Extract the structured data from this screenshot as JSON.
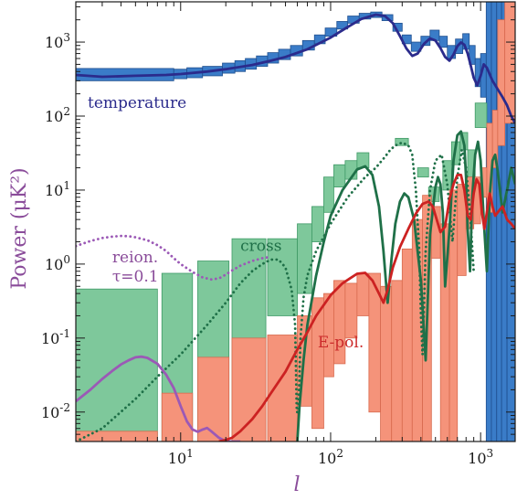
{
  "chart_data": {
    "type": "line",
    "xlabel": "l",
    "ylabel": "Power (μK²)",
    "xscale": "log",
    "yscale": "log",
    "xlim": [
      2,
      1700
    ],
    "ylim": [
      0.004,
      3500
    ],
    "x_ticks": [
      {
        "value": 10,
        "base": "10",
        "exp": "1"
      },
      {
        "value": 100,
        "base": "10",
        "exp": "2"
      },
      {
        "value": 1000,
        "base": "10",
        "exp": "3"
      }
    ],
    "y_ticks": [
      {
        "value": 0.01,
        "base": "10",
        "exp": "-2"
      },
      {
        "value": 0.1,
        "base": "10",
        "exp": "-1"
      },
      {
        "value": 1,
        "base": "10",
        "exp": "0"
      },
      {
        "value": 10,
        "base": "10",
        "exp": "1"
      },
      {
        "value": 100,
        "base": "10",
        "exp": "2"
      },
      {
        "value": 1000,
        "base": "10",
        "exp": "3"
      }
    ],
    "annotations": [
      {
        "text": "temperature",
        "color": "#2b2b8c",
        "x": 2.4,
        "y": 130
      },
      {
        "text": "cross",
        "color": "#1f7048",
        "x": 25,
        "y": 1.5
      },
      {
        "text": "reion.",
        "color": "#8a4c9a",
        "x": 3.5,
        "y": 1.05
      },
      {
        "text": "τ=0.1",
        "color": "#8a4c9a",
        "x": 3.5,
        "y": 0.58
      },
      {
        "text": "E-pol.",
        "color": "#cc2b2b",
        "x": 82,
        "y": 0.075
      }
    ],
    "band_series": [
      {
        "name": "temperature",
        "color": "#3a7cc8",
        "edge": "#1f4f8f",
        "bands": [
          [
            2,
            9,
            300,
            440
          ],
          [
            9,
            11,
            320,
            430
          ],
          [
            11,
            14,
            330,
            450
          ],
          [
            14,
            19,
            350,
            470
          ],
          [
            19,
            23,
            380,
            520
          ],
          [
            23,
            27,
            400,
            560
          ],
          [
            27,
            32,
            430,
            600
          ],
          [
            32,
            38,
            470,
            650
          ],
          [
            38,
            45,
            520,
            720
          ],
          [
            45,
            54,
            580,
            800
          ],
          [
            54,
            65,
            650,
            900
          ],
          [
            65,
            78,
            780,
            1050
          ],
          [
            78,
            92,
            950,
            1250
          ],
          [
            92,
            110,
            1200,
            1550
          ],
          [
            110,
            130,
            1500,
            1900
          ],
          [
            130,
            155,
            1800,
            2250
          ],
          [
            155,
            185,
            2050,
            2450
          ],
          [
            185,
            220,
            2150,
            2550
          ],
          [
            220,
            260,
            1950,
            2350
          ],
          [
            260,
            300,
            1400,
            1800
          ],
          [
            300,
            345,
            950,
            1250
          ],
          [
            345,
            400,
            750,
            1000
          ],
          [
            400,
            460,
            900,
            1200
          ],
          [
            460,
            530,
            1050,
            1450
          ],
          [
            530,
            600,
            850,
            1200
          ],
          [
            600,
            680,
            600,
            900
          ],
          [
            680,
            760,
            700,
            1100
          ],
          [
            760,
            840,
            800,
            1300
          ],
          [
            840,
            920,
            500,
            900
          ],
          [
            920,
            1000,
            250,
            600
          ],
          [
            1000,
            1090,
            180,
            700
          ],
          [
            1090,
            1180,
            0.004,
            3500
          ],
          [
            1180,
            1280,
            0.004,
            3500
          ],
          [
            1280,
            1380,
            0.004,
            3500
          ],
          [
            1380,
            1500,
            0.004,
            3500
          ],
          [
            1500,
            1700,
            0.004,
            3500
          ]
        ]
      },
      {
        "name": "cross",
        "color": "#7ec89b",
        "edge": "#3f9a66",
        "bands": [
          [
            2,
            7,
            0.0045,
            0.46
          ],
          [
            7.5,
            12,
            0.004,
            0.75
          ],
          [
            13,
            21,
            0.004,
            1.1
          ],
          [
            22,
            37,
            0.004,
            2.2
          ],
          [
            38,
            60,
            0.2,
            2.2
          ],
          [
            60,
            75,
            0.4,
            3.5
          ],
          [
            75,
            90,
            2.0,
            6.0
          ],
          [
            90,
            105,
            5.0,
            15
          ],
          [
            105,
            125,
            11,
            22
          ],
          [
            125,
            150,
            14,
            25
          ],
          [
            150,
            180,
            20,
            32
          ],
          [
            270,
            330,
            40,
            50
          ],
          [
            380,
            450,
            15,
            20
          ],
          [
            450,
            530,
            7,
            11
          ],
          [
            560,
            640,
            10,
            25
          ],
          [
            640,
            730,
            22,
            45
          ],
          [
            730,
            820,
            35,
            60
          ],
          [
            820,
            920,
            15,
            35
          ],
          [
            920,
            1100,
            70,
            150
          ]
        ]
      },
      {
        "name": "E-pol.",
        "color": "#f5937a",
        "edge": "#d86a4e",
        "bands": [
          [
            2,
            7,
            0.004,
            0.0055
          ],
          [
            7.5,
            12,
            0.004,
            0.018
          ],
          [
            13,
            21,
            0.004,
            0.055
          ],
          [
            22,
            37,
            0.004,
            0.1
          ],
          [
            38,
            60,
            0.004,
            0.11
          ],
          [
            60,
            75,
            0.012,
            0.2
          ],
          [
            75,
            90,
            0.006,
            0.35
          ],
          [
            90,
            105,
            0.03,
            0.4
          ],
          [
            105,
            125,
            0.045,
            0.6
          ],
          [
            125,
            150,
            0.1,
            0.55
          ],
          [
            150,
            180,
            0.2,
            0.75
          ],
          [
            180,
            215,
            0.01,
            0.75
          ],
          [
            215,
            255,
            0.004,
            0.5
          ],
          [
            255,
            300,
            0.004,
            0.6
          ],
          [
            300,
            350,
            0.004,
            1.6
          ],
          [
            350,
            410,
            0.004,
            4.0
          ],
          [
            410,
            470,
            0.004,
            8.5
          ],
          [
            470,
            540,
            1.2,
            6.0
          ],
          [
            540,
            620,
            0.004,
            3.5
          ],
          [
            620,
            700,
            0.004,
            10
          ],
          [
            700,
            800,
            0.7,
            12
          ],
          [
            800,
            900,
            3.0,
            15
          ],
          [
            900,
            1000,
            3.5,
            15
          ],
          [
            1000,
            1100,
            8,
            20
          ],
          [
            1100,
            1200,
            5,
            80
          ],
          [
            1200,
            1300,
            20,
            120
          ],
          [
            1300,
            1450,
            40,
            2000
          ],
          [
            1450,
            1700,
            80,
            3500
          ]
        ]
      }
    ],
    "line_series": [
      {
        "name": "temperature",
        "color": "#2b2b8c",
        "dash": false,
        "x": [
          2,
          3,
          5,
          8,
          10,
          15,
          20,
          30,
          40,
          50,
          70,
          100,
          130,
          160,
          200,
          230,
          260,
          290,
          320,
          350,
          380,
          420,
          460,
          500,
          540,
          580,
          620,
          660,
          700,
          740,
          780,
          820,
          860,
          900,
          950,
          1000,
          1050,
          1100,
          1200,
          1300,
          1400,
          1500,
          1600,
          1700
        ],
        "y": [
          360,
          340,
          350,
          360,
          370,
          400,
          430,
          490,
          560,
          630,
          800,
          1150,
          1600,
          2050,
          2350,
          2250,
          1800,
          1200,
          820,
          650,
          700,
          950,
          1120,
          1050,
          830,
          630,
          560,
          680,
          880,
          990,
          920,
          700,
          480,
          330,
          260,
          350,
          500,
          450,
          300,
          230,
          180,
          140,
          100,
          80
        ]
      },
      {
        "name": "cross (solid)",
        "color": "#1f7048",
        "dash": false,
        "x": [
          60,
          62,
          66,
          70,
          80,
          90,
          100,
          120,
          150,
          170,
          190,
          210,
          225,
          240,
          255,
          270,
          290,
          310,
          330,
          360,
          400,
          430,
          460,
          500,
          520,
          540,
          560,
          580,
          620,
          660,
          700,
          740,
          780,
          800,
          820,
          850,
          880,
          920,
          960,
          1000,
          1050,
          1100,
          1150,
          1200,
          1250,
          1300,
          1400,
          1500,
          1600,
          1700
        ],
        "y": [
          0.004,
          0.012,
          0.05,
          0.15,
          0.7,
          2.0,
          4.5,
          10,
          19,
          21,
          16,
          6,
          1.5,
          0.3,
          1.2,
          3.5,
          7,
          9,
          8,
          4,
          0.6,
          0.05,
          2.5,
          11,
          15,
          12,
          5,
          0.5,
          3,
          25,
          55,
          62,
          40,
          15,
          3,
          0.8,
          8,
          30,
          45,
          25,
          4,
          0.8,
          8,
          25,
          30,
          18,
          5,
          10,
          20,
          12
        ]
      },
      {
        "name": "cross (dotted)",
        "color": "#1f7048",
        "dash": true,
        "x": [
          2,
          3,
          5,
          7,
          10,
          15,
          20,
          25,
          30,
          35,
          40,
          45,
          50,
          55,
          58,
          59.5,
          61,
          63,
          66,
          70,
          80,
          100,
          130,
          170,
          200,
          230,
          250,
          270,
          300,
          330,
          350,
          370,
          390,
          400,
          410,
          430,
          460,
          500,
          550,
          600,
          650,
          700,
          750,
          800,
          850,
          900
        ],
        "y": [
          0.004,
          0.006,
          0.015,
          0.03,
          0.06,
          0.15,
          0.3,
          0.55,
          0.8,
          1.0,
          1.15,
          1.15,
          0.9,
          0.45,
          0.15,
          0.01,
          0.01,
          0.1,
          0.35,
          0.7,
          1.5,
          3.5,
          8,
          15,
          20,
          28,
          35,
          40,
          44,
          40,
          30,
          10,
          1.5,
          0.2,
          0.06,
          1.5,
          10,
          25,
          30,
          12,
          2,
          15,
          35,
          20,
          5,
          0.8
        ]
      },
      {
        "name": "reion. τ=0.1",
        "color": "#9b59b6",
        "dash": true,
        "x": [
          2,
          2.5,
          3,
          3.5,
          4,
          4.5,
          5,
          6,
          7,
          8,
          9,
          10,
          12,
          14,
          16,
          18,
          20,
          22,
          25,
          30,
          35,
          40
        ],
        "y": [
          1.75,
          2.05,
          2.25,
          2.35,
          2.4,
          2.38,
          2.3,
          2.1,
          1.8,
          1.5,
          1.2,
          1.0,
          0.78,
          0.66,
          0.62,
          0.64,
          0.72,
          0.82,
          0.95,
          1.1,
          1.2,
          1.25
        ]
      },
      {
        "name": "reion. τ=0.1 (solid)",
        "color": "#9b59b6",
        "dash": false,
        "x": [
          2,
          2.5,
          3,
          3.5,
          4,
          4.5,
          5,
          5.5,
          6,
          7,
          8,
          9,
          10,
          11,
          12,
          13,
          14,
          15,
          16,
          18,
          20,
          22,
          25
        ],
        "y": [
          0.014,
          0.02,
          0.028,
          0.036,
          0.044,
          0.05,
          0.055,
          0.056,
          0.054,
          0.045,
          0.032,
          0.021,
          0.012,
          0.0075,
          0.0058,
          0.0054,
          0.0058,
          0.0061,
          0.0055,
          0.0045,
          0.004,
          0.004,
          0.004
        ]
      },
      {
        "name": "E-pol.",
        "color": "#cc2222",
        "dash": false,
        "x": [
          18,
          20,
          22,
          25,
          30,
          35,
          40,
          50,
          60,
          70,
          80,
          100,
          120,
          150,
          170,
          190,
          210,
          225,
          240,
          260,
          290,
          330,
          370,
          410,
          450,
          480,
          510,
          540,
          580,
          620,
          660,
          700,
          740,
          780,
          820,
          860,
          900,
          940,
          980,
          1020,
          1060,
          1100,
          1150,
          1200,
          1250,
          1300,
          1400,
          1500,
          1600,
          1700
        ],
        "y": [
          0.004,
          0.0042,
          0.0045,
          0.0055,
          0.008,
          0.012,
          0.018,
          0.035,
          0.07,
          0.12,
          0.2,
          0.38,
          0.55,
          0.74,
          0.76,
          0.6,
          0.4,
          0.3,
          0.45,
          0.9,
          1.7,
          3.0,
          4.8,
          6.5,
          7.0,
          6.0,
          4.0,
          2.7,
          3.2,
          7.5,
          12,
          16,
          16,
          10,
          4.5,
          4,
          9,
          14,
          12,
          5,
          3,
          5,
          9,
          6,
          4.5,
          5,
          6,
          4,
          3.5,
          3
        ]
      }
    ]
  }
}
